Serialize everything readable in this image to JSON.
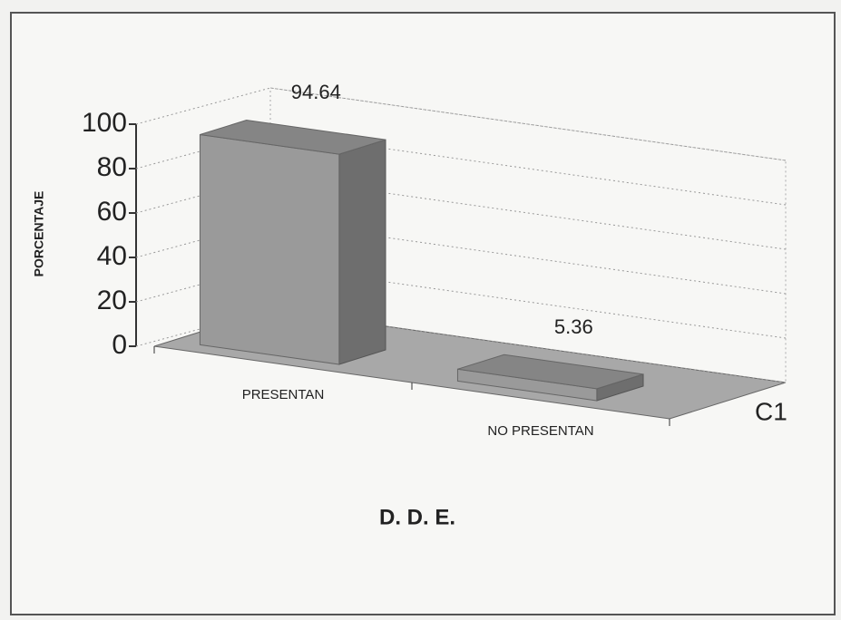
{
  "chart_data": {
    "type": "bar3d",
    "xlabel": "D. D. E.",
    "ylabel": "PORCENTAJE",
    "categories": [
      "PRESENTAN",
      "NO PRESENTAN"
    ],
    "series": [
      {
        "name": "C1",
        "color": "#9a9a9a",
        "values": [
          94.64,
          5.36
        ]
      }
    ],
    "ylim": [
      0,
      100
    ],
    "yticks": [
      0,
      20,
      40,
      60,
      80,
      100
    ],
    "grid": true
  }
}
